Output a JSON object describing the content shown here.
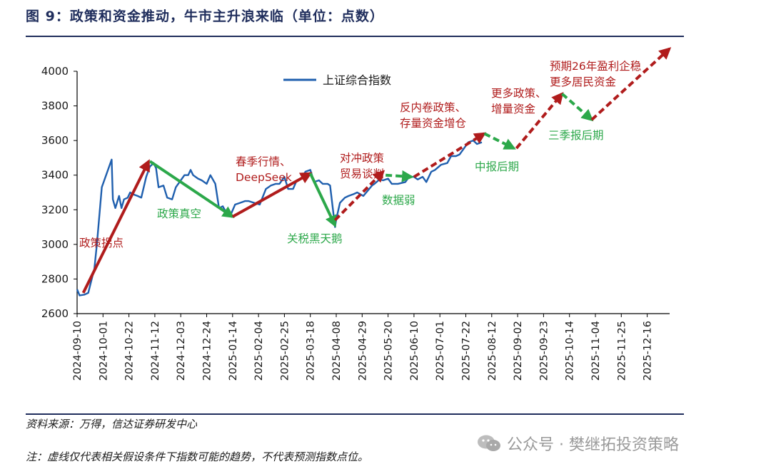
{
  "header": {
    "title": "图 9：政策和资金推动，牛市主升浪来临（单位：点数）"
  },
  "footer": {
    "source": "资料来源：万得，信达证券研发中心",
    "note": "注：虚线仅代表相关假设条件下指数可能的趋势，不代表预测指数点位。",
    "watermark": "公众号 · 樊继拓投资策略"
  },
  "colors": {
    "line": "#1f5fae",
    "up": "#b01c1c",
    "down": "#2ca84a",
    "axis": "#000000"
  },
  "chart_data": {
    "type": "line",
    "legend": {
      "label": "上证综合指数",
      "position": "top-center"
    },
    "y_ticks": [
      "2600",
      "2800",
      "3000",
      "3200",
      "3400",
      "3600",
      "3800",
      "4000"
    ],
    "ylim": [
      2600,
      4000
    ],
    "x_ticks": [
      "2024-09-10",
      "2024-10-01",
      "2024-10-22",
      "2024-11-12",
      "2024-12-03",
      "2024-12-24",
      "2025-01-14",
      "2025-02-04",
      "2025-02-25",
      "2025-03-18",
      "2025-04-08",
      "2025-04-29",
      "2025-05-20",
      "2025-06-10",
      "2025-07-01",
      "2025-07-22",
      "2025-08-12",
      "2025-09-02",
      "2025-09-23",
      "2025-10-14",
      "2025-11-04",
      "2025-11-25",
      "2025-12-16"
    ],
    "series": [
      {
        "name": "上证综合指数",
        "x": [
          "2024-09-10",
          "2024-09-12",
          "2024-09-16",
          "2024-09-19",
          "2024-09-24",
          "2024-09-26",
          "2024-09-30",
          "2024-10-08",
          "2024-10-09",
          "2024-10-11",
          "2024-10-14",
          "2024-10-16",
          "2024-10-18",
          "2024-10-21",
          "2024-10-23",
          "2024-10-25",
          "2024-10-29",
          "2024-11-01",
          "2024-11-05",
          "2024-11-08",
          "2024-11-11",
          "2024-11-13",
          "2024-11-15",
          "2024-11-19",
          "2024-11-22",
          "2024-11-26",
          "2024-11-29",
          "2024-12-03",
          "2024-12-06",
          "2024-12-09",
          "2024-12-11",
          "2024-12-13",
          "2024-12-17",
          "2024-12-20",
          "2024-12-24",
          "2024-12-27",
          "2024-12-31",
          "2025-01-03",
          "2025-01-06",
          "2025-01-10",
          "2025-01-13",
          "2025-01-16",
          "2025-01-20",
          "2025-01-24",
          "2025-01-27",
          "2025-02-05",
          "2025-02-10",
          "2025-02-14",
          "2025-02-18",
          "2025-02-21",
          "2025-02-25",
          "2025-02-28",
          "2025-03-04",
          "2025-03-07",
          "2025-03-11",
          "2025-03-14",
          "2025-03-18",
          "2025-03-21",
          "2025-03-25",
          "2025-03-28",
          "2025-04-01",
          "2025-04-03",
          "2025-04-07",
          "2025-04-08",
          "2025-04-11",
          "2025-04-15",
          "2025-04-18",
          "2025-04-22",
          "2025-04-25",
          "2025-04-30",
          "2025-05-07",
          "2025-05-09",
          "2025-05-13",
          "2025-05-16",
          "2025-05-20",
          "2025-05-23",
          "2025-05-28",
          "2025-06-03",
          "2025-06-06",
          "2025-06-10",
          "2025-06-13",
          "2025-06-17",
          "2025-06-20",
          "2025-06-24",
          "2025-06-27",
          "2025-07-02",
          "2025-07-07",
          "2025-07-10",
          "2025-07-14",
          "2025-07-17",
          "2025-07-21",
          "2025-07-24",
          "2025-07-28",
          "2025-07-31",
          "2025-08-04"
        ],
        "y": [
          2740,
          2705,
          2710,
          2720,
          2860,
          3000,
          3330,
          3490,
          3260,
          3210,
          3280,
          3210,
          3260,
          3270,
          3300,
          3290,
          3280,
          3270,
          3390,
          3450,
          3470,
          3440,
          3330,
          3340,
          3270,
          3260,
          3330,
          3370,
          3400,
          3400,
          3430,
          3400,
          3380,
          3370,
          3350,
          3400,
          3350,
          3210,
          3220,
          3170,
          3180,
          3230,
          3240,
          3250,
          3250,
          3230,
          3320,
          3340,
          3350,
          3350,
          3390,
          3320,
          3320,
          3370,
          3380,
          3420,
          3430,
          3360,
          3370,
          3350,
          3350,
          3340,
          3100,
          3145,
          3240,
          3270,
          3280,
          3290,
          3300,
          3280,
          3340,
          3350,
          3375,
          3370,
          3380,
          3350,
          3350,
          3360,
          3390,
          3390,
          3375,
          3390,
          3360,
          3420,
          3430,
          3460,
          3470,
          3510,
          3510,
          3520,
          3560,
          3590,
          3600,
          3580,
          3590
        ]
      }
    ],
    "arrows": [
      {
        "kind": "up",
        "label": "政策拐点",
        "from": {
          "x": "2024-09-15",
          "y": 2720
        },
        "to": {
          "x": "2024-11-07",
          "y": 3480
        }
      },
      {
        "kind": "down",
        "label": "政策真空",
        "from": {
          "x": "2024-11-08",
          "y": 3480
        },
        "to": {
          "x": "2025-01-14",
          "y": 3160
        }
      },
      {
        "kind": "up",
        "label": "春季行情、DeepSeek",
        "from": {
          "x": "2025-01-14",
          "y": 3160
        },
        "to": {
          "x": "2025-03-18",
          "y": 3410
        }
      },
      {
        "kind": "down",
        "label": "关税黑天鹅",
        "from": {
          "x": "2025-03-18",
          "y": 3410
        },
        "to": {
          "x": "2025-04-07",
          "y": 3110
        }
      },
      {
        "kind": "up",
        "dashed": true,
        "label": "对冲政策贸易谈判",
        "from": {
          "x": "2025-04-07",
          "y": 3140
        },
        "to": {
          "x": "2025-05-16",
          "y": 3420
        }
      },
      {
        "kind": "down",
        "dashed": true,
        "label": "数据弱",
        "from": {
          "x": "2025-05-18",
          "y": 3400
        },
        "to": {
          "x": "2025-06-08",
          "y": 3390
        }
      },
      {
        "kind": "up",
        "dashed": true,
        "label": "反内卷政策、存量资金增仓",
        "from": {
          "x": "2025-06-10",
          "y": 3390
        },
        "to": {
          "x": "2025-08-06",
          "y": 3640
        }
      },
      {
        "kind": "down",
        "dashed": true,
        "label": "中报后期",
        "from": {
          "x": "2025-08-06",
          "y": 3640
        },
        "to": {
          "x": "2025-08-30",
          "y": 3555
        }
      },
      {
        "kind": "up",
        "dashed": true,
        "label": "更多政策、增量资金",
        "from": {
          "x": "2025-09-01",
          "y": 3555
        },
        "to": {
          "x": "2025-10-08",
          "y": 3870
        }
      },
      {
        "kind": "down",
        "dashed": true,
        "label": "三季报后期",
        "from": {
          "x": "2025-10-08",
          "y": 3870
        },
        "to": {
          "x": "2025-11-01",
          "y": 3720
        }
      },
      {
        "kind": "up",
        "dashed": true,
        "label": "预期26年盈利企稳更多居民资金",
        "from": {
          "x": "2025-11-01",
          "y": 3720
        },
        "to": {
          "x": "2026-01-03",
          "y": 4130
        }
      }
    ],
    "annotations": [
      {
        "id": "policy-turn",
        "lines": [
          "政策拐点"
        ],
        "color": "up"
      },
      {
        "id": "policy-vacuum",
        "lines": [
          "政策真空"
        ],
        "color": "down"
      },
      {
        "id": "spring-rally",
        "lines": [
          "春季行情、",
          "DeepSeek"
        ],
        "color": "up"
      },
      {
        "id": "tariff-black-swan",
        "lines": [
          "关税黑天鹅"
        ],
        "color": "down"
      },
      {
        "id": "hedge-policy",
        "lines": [
          "对冲政策",
          "贸易谈判"
        ],
        "color": "up"
      },
      {
        "id": "weak-data",
        "lines": [
          "数据弱"
        ],
        "color": "down"
      },
      {
        "id": "anti-involution",
        "lines": [
          "反内卷政策、",
          "存量资金增仓"
        ],
        "color": "up"
      },
      {
        "id": "interim-report",
        "lines": [
          "中报后期"
        ],
        "color": "down"
      },
      {
        "id": "more-policy",
        "lines": [
          "更多政策、",
          "增量资金"
        ],
        "color": "up"
      },
      {
        "id": "q3-report",
        "lines": [
          "三季报后期"
        ],
        "color": "down"
      },
      {
        "id": "expect-2026",
        "lines": [
          "预期26年盈利企稳",
          "更多居民资金"
        ],
        "color": "up"
      }
    ]
  }
}
